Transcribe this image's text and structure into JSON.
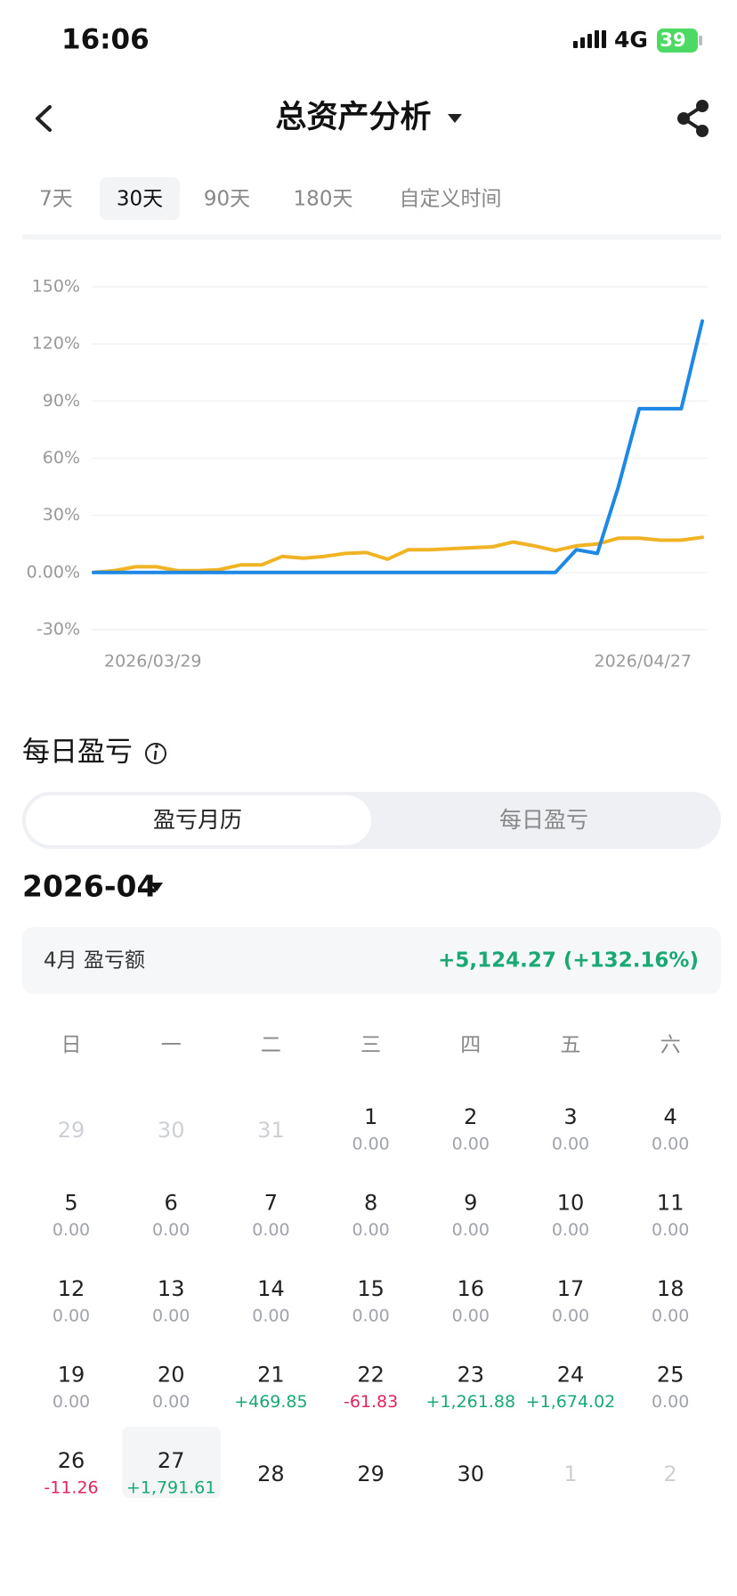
{
  "status_bar": {
    "time": "16:06",
    "network": "4G",
    "battery": "39"
  },
  "header": {
    "title": "总资产分析"
  },
  "tabs": {
    "items": [
      "7天",
      "30天",
      "90天",
      "180天",
      "自定义时间"
    ],
    "selected": 1
  },
  "chart_data": {
    "type": "line",
    "categories": [
      "2026/03/29",
      null,
      null,
      null,
      null,
      null,
      null,
      null,
      null,
      null,
      null,
      null,
      null,
      null,
      null,
      null,
      null,
      null,
      null,
      null,
      null,
      null,
      null,
      null,
      null,
      null,
      null,
      null,
      null,
      "2026/04/27"
    ],
    "series": [
      {
        "color": "#f0b323",
        "values": [
          0,
          1,
          3,
          3,
          1,
          1,
          1.5,
          4,
          4,
          8.5,
          7.5,
          8.5,
          10,
          10.5,
          7,
          12,
          12,
          12.5,
          13,
          13.5,
          16,
          14,
          11.5,
          14,
          15,
          18,
          18,
          17,
          17,
          18.5
        ]
      },
      {
        "color": "#1e88e5",
        "values": [
          0,
          0,
          0,
          0,
          0,
          0,
          0,
          0,
          0,
          0,
          0,
          0,
          0,
          0,
          0,
          0,
          0,
          0,
          0,
          0,
          0,
          0,
          0,
          12,
          10,
          45,
          86,
          86,
          86,
          132
        ]
      }
    ],
    "ylim": [
      -30,
      150
    ],
    "yticks": [
      {
        "value": -30,
        "label": "-30%"
      },
      {
        "value": 0,
        "label": "0.00%"
      },
      {
        "value": 30,
        "label": "30%"
      },
      {
        "value": 60,
        "label": "60%"
      },
      {
        "value": 90,
        "label": "90%"
      },
      {
        "value": 120,
        "label": "120%"
      },
      {
        "value": 150,
        "label": "150%"
      }
    ],
    "grid": true
  },
  "section": {
    "title": "每日盈亏",
    "toggle": [
      "盈亏月历",
      "每日盈亏"
    ],
    "toggle_selected": 0
  },
  "month": "2026-04",
  "summary": {
    "label": "4月 盈亏额",
    "value": "+5,124.27 (+132.16%)"
  },
  "calendar": {
    "weekdays": [
      "日",
      "一",
      "二",
      "三",
      "四",
      "五",
      "六"
    ],
    "weeks": [
      [
        {
          "day": "29",
          "outside": true
        },
        {
          "day": "30",
          "outside": true
        },
        {
          "day": "31",
          "outside": true
        },
        {
          "day": "1",
          "pnl": "0.00"
        },
        {
          "day": "2",
          "pnl": "0.00"
        },
        {
          "day": "3",
          "pnl": "0.00"
        },
        {
          "day": "4",
          "pnl": "0.00"
        }
      ],
      [
        {
          "day": "5",
          "pnl": "0.00"
        },
        {
          "day": "6",
          "pnl": "0.00"
        },
        {
          "day": "7",
          "pnl": "0.00"
        },
        {
          "day": "8",
          "pnl": "0.00"
        },
        {
          "day": "9",
          "pnl": "0.00"
        },
        {
          "day": "10",
          "pnl": "0.00"
        },
        {
          "day": "11",
          "pnl": "0.00"
        }
      ],
      [
        {
          "day": "12",
          "pnl": "0.00"
        },
        {
          "day": "13",
          "pnl": "0.00"
        },
        {
          "day": "14",
          "pnl": "0.00"
        },
        {
          "day": "15",
          "pnl": "0.00"
        },
        {
          "day": "16",
          "pnl": "0.00"
        },
        {
          "day": "17",
          "pnl": "0.00"
        },
        {
          "day": "18",
          "pnl": "0.00"
        }
      ],
      [
        {
          "day": "19",
          "pnl": "0.00"
        },
        {
          "day": "20",
          "pnl": "0.00"
        },
        {
          "day": "21",
          "pnl": "+469.85"
        },
        {
          "day": "22",
          "pnl": "-61.83"
        },
        {
          "day": "23",
          "pnl": "+1,261.88"
        },
        {
          "day": "24",
          "pnl": "+1,674.02"
        },
        {
          "day": "25",
          "pnl": "0.00"
        }
      ],
      [
        {
          "day": "26",
          "pnl": "-11.26"
        },
        {
          "day": "27",
          "pnl": "+1,791.61",
          "today": true
        },
        {
          "day": "28"
        },
        {
          "day": "29"
        },
        {
          "day": "30"
        },
        {
          "day": "1",
          "outside": true
        },
        {
          "day": "2",
          "outside": true
        }
      ]
    ]
  }
}
